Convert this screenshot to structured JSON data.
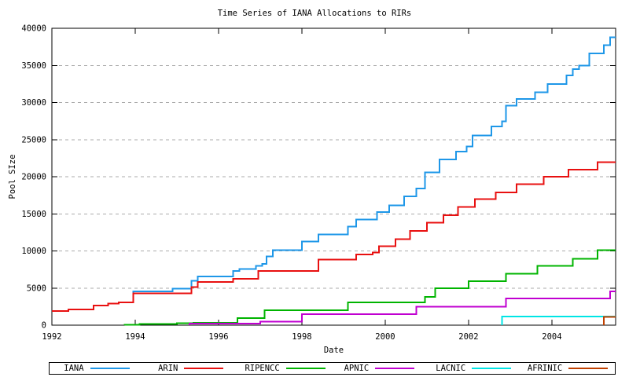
{
  "chart_data": {
    "type": "line",
    "line_style": "step-after",
    "title": "Time Series of IANA Allocations to RIRs",
    "xlabel": "Date",
    "ylabel": "Pool SIze",
    "xlim": [
      1992,
      2005.53
    ],
    "ylim": [
      0,
      40000
    ],
    "x_ticks": [
      1992,
      1994,
      1996,
      1998,
      2000,
      2002,
      2004
    ],
    "y_ticks": [
      0,
      5000,
      10000,
      15000,
      20000,
      25000,
      30000,
      35000,
      40000
    ],
    "grid": "horizontal-dashed",
    "grid_color": "#ababab",
    "axis_color": "#000000",
    "background_color": "#ffffff",
    "legend_position": "below-box",
    "series": [
      {
        "name": "IANA",
        "color": "#1e97e8",
        "points": [
          [
            1993.35,
            2890
          ],
          [
            1993.6,
            3070
          ],
          [
            1993.95,
            4550
          ],
          [
            1994.9,
            4900
          ],
          [
            1995.35,
            6000
          ],
          [
            1995.5,
            6560
          ],
          [
            1996.35,
            7300
          ],
          [
            1996.5,
            7540
          ],
          [
            1996.9,
            8010
          ],
          [
            1997.05,
            8250
          ],
          [
            1997.15,
            9240
          ],
          [
            1997.3,
            10120
          ],
          [
            1998.0,
            11290
          ],
          [
            1998.4,
            12240
          ],
          [
            1999.1,
            13300
          ],
          [
            1999.3,
            14250
          ],
          [
            1999.8,
            15240
          ],
          [
            2000.1,
            16120
          ],
          [
            2000.45,
            17350
          ],
          [
            2000.75,
            18400
          ],
          [
            2000.95,
            20600
          ],
          [
            2001.3,
            22350
          ],
          [
            2001.7,
            23400
          ],
          [
            2001.95,
            24100
          ],
          [
            2002.1,
            25530
          ],
          [
            2002.55,
            26770
          ],
          [
            2002.8,
            27470
          ],
          [
            2002.9,
            29590
          ],
          [
            2003.15,
            30470
          ],
          [
            2003.6,
            31400
          ],
          [
            2003.9,
            32500
          ],
          [
            2004.35,
            33640
          ],
          [
            2004.5,
            34520
          ],
          [
            2004.65,
            35000
          ],
          [
            2004.9,
            36640
          ],
          [
            2005.25,
            37700
          ],
          [
            2005.4,
            38760
          ]
        ]
      },
      {
        "name": "ARIN",
        "color": "#e81010",
        "points": [
          [
            1992.0,
            1900
          ],
          [
            1992.4,
            2120
          ],
          [
            1993.0,
            2650
          ],
          [
            1993.35,
            2890
          ],
          [
            1993.6,
            3070
          ],
          [
            1993.95,
            4300
          ],
          [
            1995.35,
            5110
          ],
          [
            1995.5,
            5820
          ],
          [
            1996.35,
            6240
          ],
          [
            1996.95,
            7300
          ],
          [
            1998.4,
            8810
          ],
          [
            1999.3,
            9520
          ],
          [
            1999.7,
            9770
          ],
          [
            1999.85,
            10650
          ],
          [
            2000.25,
            11600
          ],
          [
            2000.6,
            12700
          ],
          [
            2001.0,
            13830
          ],
          [
            2001.4,
            14800
          ],
          [
            2001.75,
            15900
          ],
          [
            2002.15,
            17000
          ],
          [
            2002.65,
            17900
          ],
          [
            2003.15,
            19000
          ],
          [
            2003.8,
            20000
          ],
          [
            2004.4,
            20950
          ],
          [
            2005.1,
            21940
          ]
        ]
      },
      {
        "name": "RIPENCC",
        "color": "#00b400",
        "points": [
          [
            1993.75,
            0
          ],
          [
            1993.75,
            60
          ],
          [
            1994.1,
            160
          ],
          [
            1995.0,
            260
          ],
          [
            1995.4,
            330
          ],
          [
            1996.45,
            950
          ],
          [
            1997.1,
            2010
          ],
          [
            1999.1,
            3070
          ],
          [
            2000.95,
            3800
          ],
          [
            2001.2,
            5000
          ],
          [
            2002.0,
            5900
          ],
          [
            2002.9,
            6950
          ],
          [
            2003.65,
            8010
          ],
          [
            2004.5,
            8960
          ],
          [
            2005.1,
            10080
          ]
        ]
      },
      {
        "name": "APNIC",
        "color": "#c000d0",
        "points": [
          [
            1995.3,
            0
          ],
          [
            1995.3,
            230
          ],
          [
            1997.0,
            500
          ],
          [
            1998.0,
            1480
          ],
          [
            2000.75,
            2465
          ],
          [
            2002.9,
            3600
          ],
          [
            2005.4,
            4550
          ]
        ]
      },
      {
        "name": "LACNIC",
        "color": "#00e5e5",
        "points": [
          [
            2002.8,
            0
          ],
          [
            2002.8,
            1150
          ]
        ]
      },
      {
        "name": "AFRINIC",
        "color": "#c04000",
        "points": [
          [
            2005.25,
            0
          ],
          [
            2005.25,
            1100
          ]
        ]
      }
    ]
  }
}
